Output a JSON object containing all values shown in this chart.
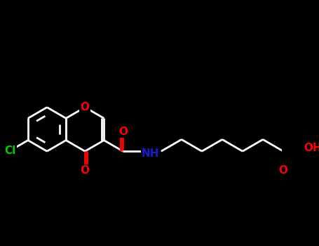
{
  "bg_color": "#000000",
  "bond_color": "#ffffff",
  "bond_width": 2.0,
  "atom_colors": {
    "O": "#ff0000",
    "N": "#1a1acc",
    "Cl": "#00cc00",
    "C": "#ffffff"
  },
  "font_size": 11,
  "fig_width": 4.55,
  "fig_height": 3.5,
  "dpi": 100,
  "xlim": [
    -0.5,
    8.5
  ],
  "ylim": [
    -1.8,
    2.2
  ]
}
